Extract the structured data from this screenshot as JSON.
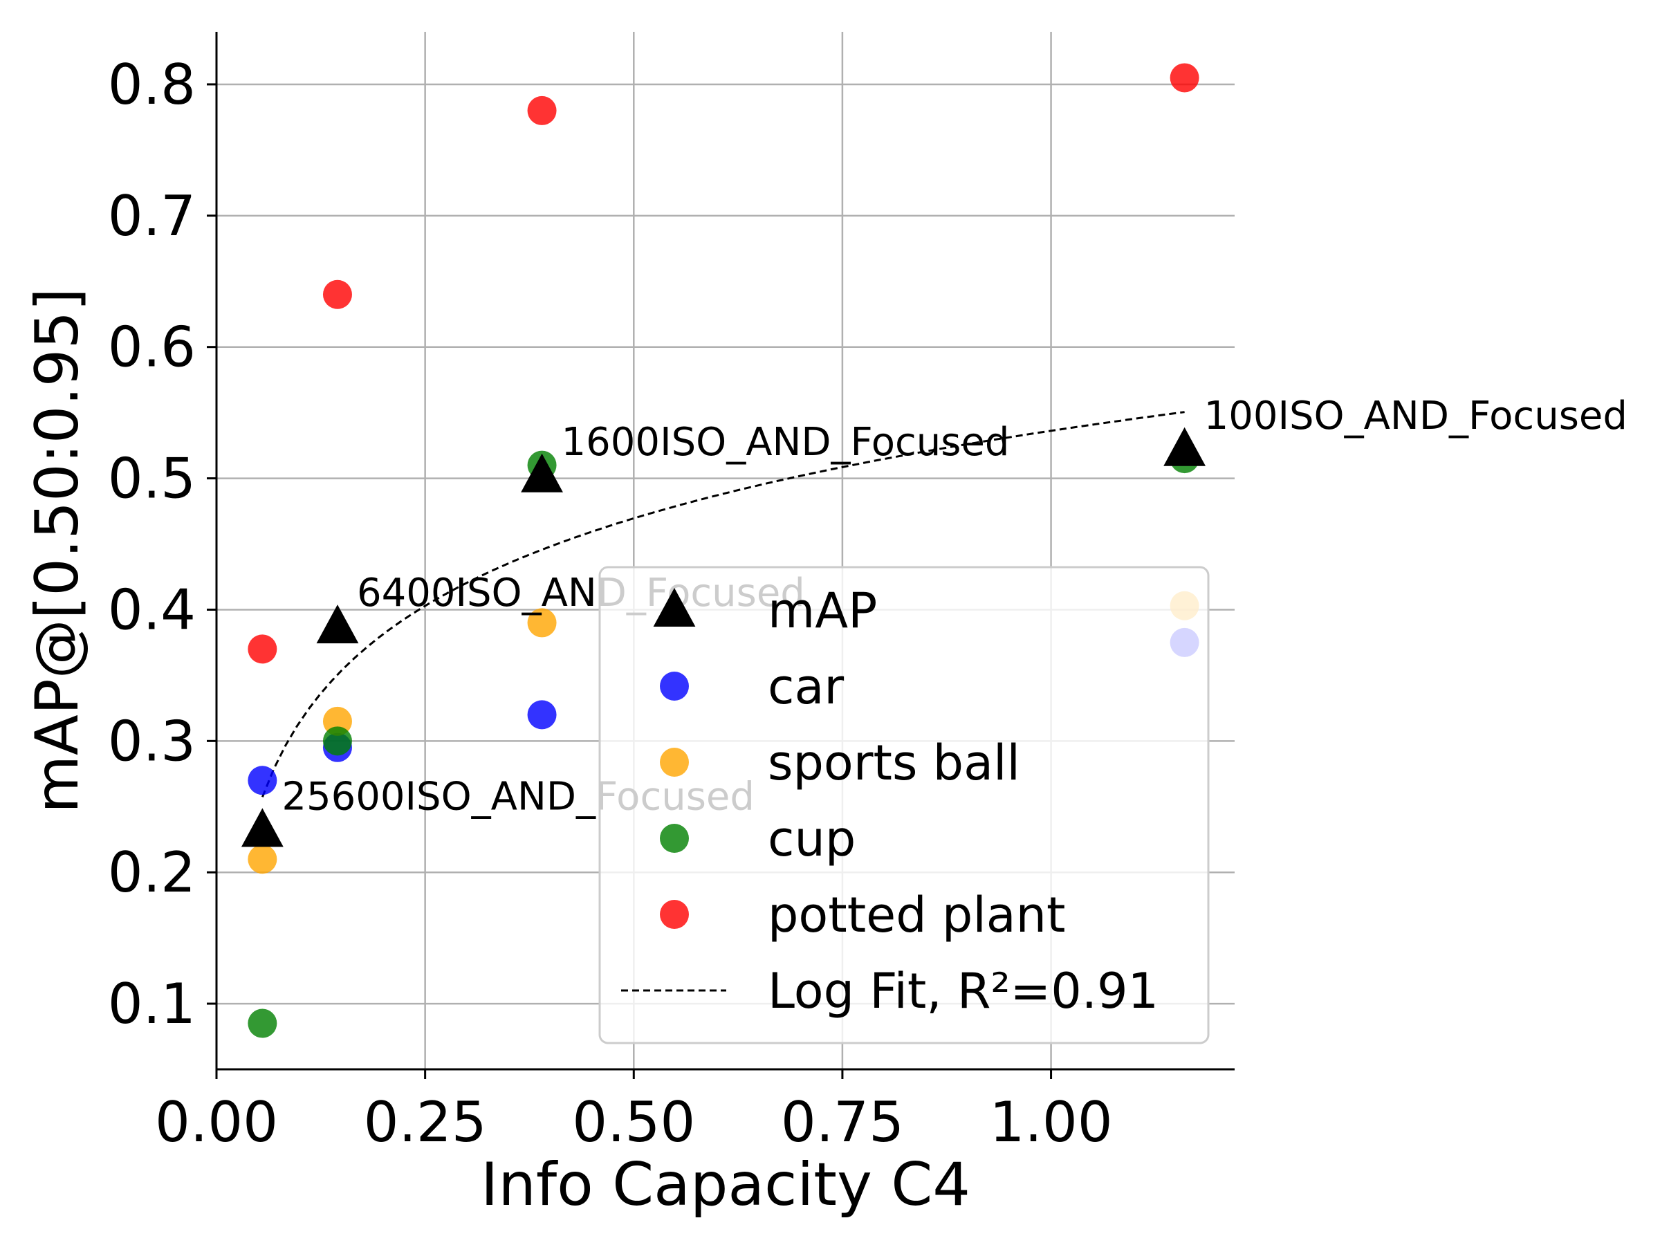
{
  "chart_data": {
    "type": "scatter",
    "xlabel": "Info Capacity C4",
    "ylabel": "mAP@[0.50:0.95]",
    "xlim": [
      0.0,
      1.22
    ],
    "ylim": [
      0.05,
      0.84
    ],
    "xticks": [
      0.0,
      0.25,
      0.5,
      0.75,
      1.0
    ],
    "xtick_labels": [
      "0.00",
      "0.25",
      "0.50",
      "0.75",
      "1.00"
    ],
    "yticks": [
      0.1,
      0.2,
      0.3,
      0.4,
      0.5,
      0.6,
      0.7,
      0.8
    ],
    "ytick_labels": [
      "0.1",
      "0.2",
      "0.3",
      "0.4",
      "0.5",
      "0.6",
      "0.7",
      "0.8"
    ],
    "grid": true,
    "legend_position": "lower-right",
    "series": [
      {
        "name": "mAP",
        "marker": "triangle",
        "color": "#000000",
        "points": [
          [
            0.055,
            0.232
          ],
          [
            0.145,
            0.387
          ],
          [
            0.39,
            0.502
          ],
          [
            1.16,
            0.522
          ]
        ]
      },
      {
        "name": "car",
        "marker": "circle",
        "color": "#0000ff",
        "points": [
          [
            0.055,
            0.27
          ],
          [
            0.145,
            0.295
          ],
          [
            0.39,
            0.32
          ],
          [
            1.16,
            0.375
          ]
        ]
      },
      {
        "name": "sports ball",
        "marker": "circle",
        "color": "#ffa500",
        "points": [
          [
            0.055,
            0.21
          ],
          [
            0.145,
            0.315
          ],
          [
            0.39,
            0.39
          ],
          [
            1.16,
            0.403
          ]
        ]
      },
      {
        "name": "cup",
        "marker": "circle",
        "color": "#008000",
        "points": [
          [
            0.055,
            0.085
          ],
          [
            0.145,
            0.3
          ],
          [
            0.39,
            0.51
          ],
          [
            1.16,
            0.515
          ]
        ]
      },
      {
        "name": "potted plant",
        "marker": "circle",
        "color": "#ff0000",
        "points": [
          [
            0.055,
            0.37
          ],
          [
            0.145,
            0.64
          ],
          [
            0.39,
            0.78
          ],
          [
            1.16,
            0.805
          ]
        ]
      }
    ],
    "fit": {
      "name": "Log Fit, R²=0.91",
      "type": "log",
      "a": 0.5362,
      "b": 0.09615,
      "x_range": [
        0.055,
        1.16
      ],
      "style": "dashed",
      "color": "#000000"
    },
    "annotations": [
      {
        "text": "25600ISO_AND_Focused",
        "x": 0.055,
        "y": 0.232
      },
      {
        "text": "6400ISO_AND_Focused",
        "x": 0.145,
        "y": 0.387
      },
      {
        "text": "1600ISO_AND_Focused",
        "x": 0.39,
        "y": 0.502
      },
      {
        "text": "100ISO_AND_Focused",
        "x": 1.16,
        "y": 0.522
      }
    ]
  }
}
